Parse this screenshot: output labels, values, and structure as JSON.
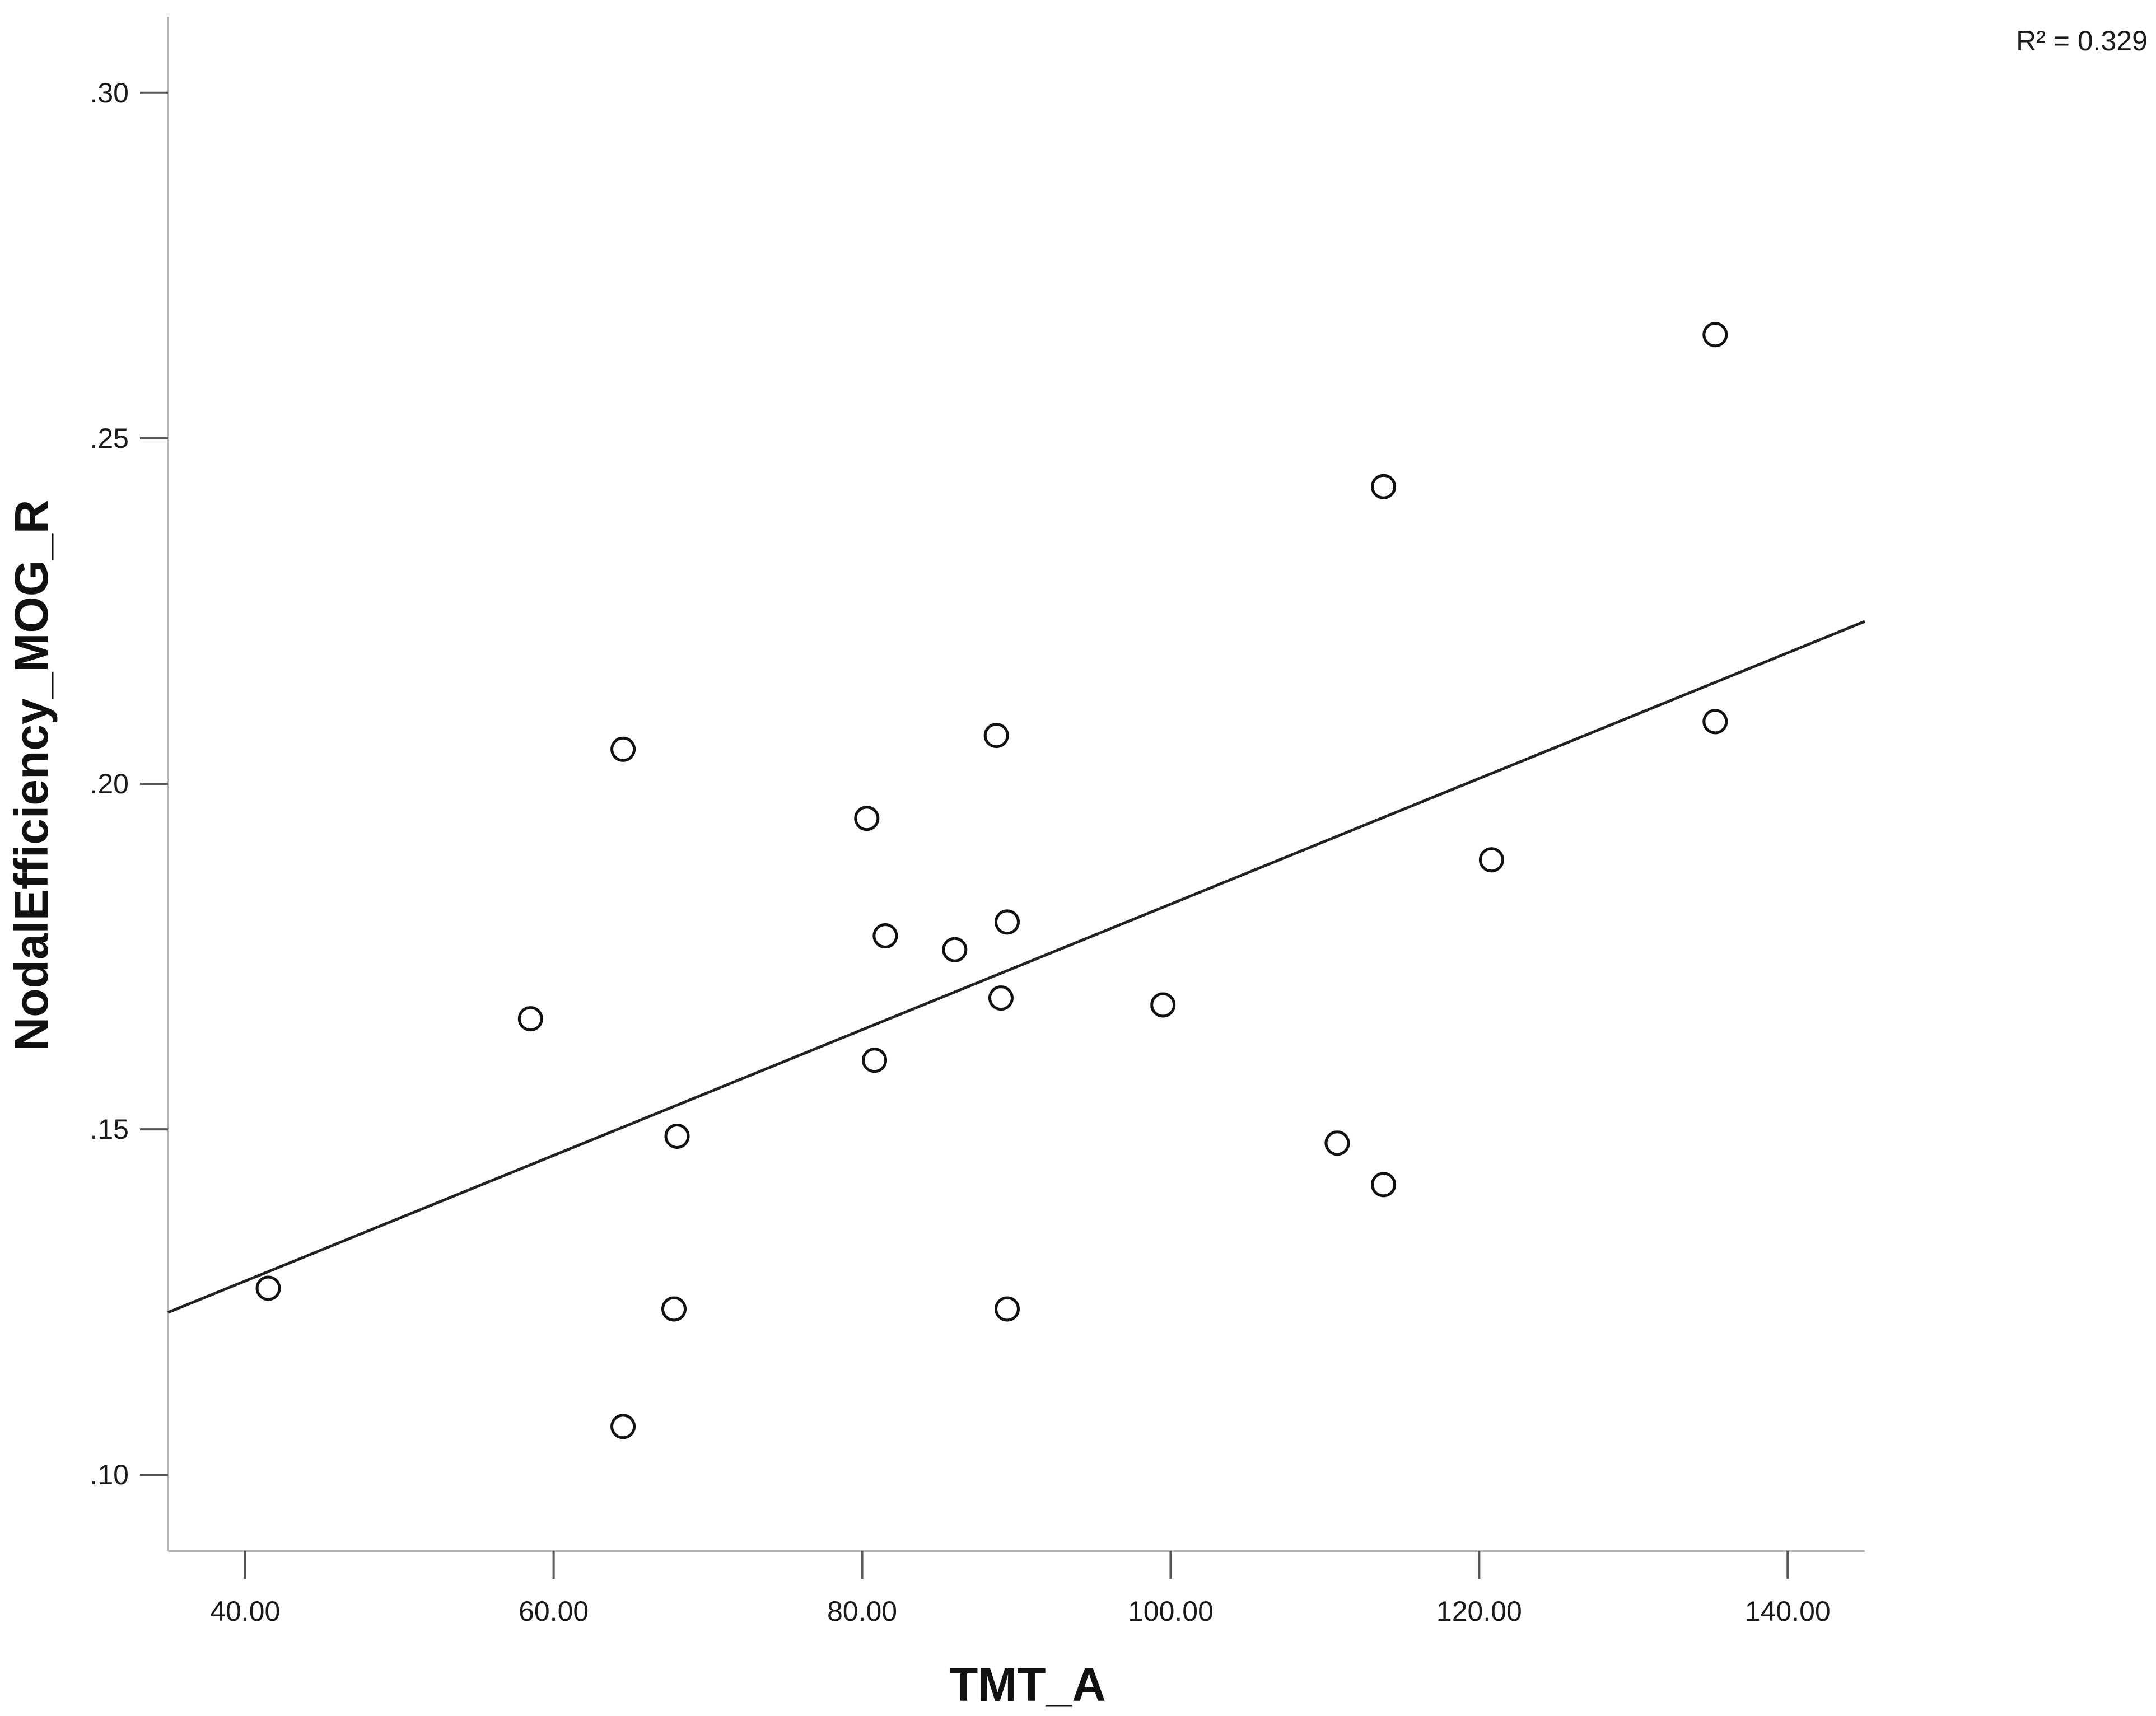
{
  "chart_data": {
    "type": "scatter",
    "title": "",
    "xlabel": "TMT_A",
    "ylabel": "NodalEfficiency_MOG_R",
    "xlim": [
      35.0,
      145.0
    ],
    "ylim": [
      0.089,
      0.311
    ],
    "x_ticks": [
      {
        "value": 40,
        "label": "40.00"
      },
      {
        "value": 60,
        "label": "60.00"
      },
      {
        "value": 80,
        "label": "80.00"
      },
      {
        "value": 100,
        "label": "100.00"
      },
      {
        "value": 120,
        "label": "120.00"
      },
      {
        "value": 140,
        "label": "140.00"
      }
    ],
    "y_ticks": [
      {
        "value": 0.1,
        "label": ".10"
      },
      {
        "value": 0.15,
        "label": ".15"
      },
      {
        "value": 0.2,
        "label": ".20"
      },
      {
        "value": 0.25,
        "label": ".25"
      },
      {
        "value": 0.3,
        "label": ".30"
      }
    ],
    "grid": false,
    "points": [
      {
        "x": 41.5,
        "y": 0.127
      },
      {
        "x": 58.5,
        "y": 0.166
      },
      {
        "x": 64.5,
        "y": 0.205
      },
      {
        "x": 64.5,
        "y": 0.107
      },
      {
        "x": 67.8,
        "y": 0.124
      },
      {
        "x": 68.0,
        "y": 0.149
      },
      {
        "x": 80.3,
        "y": 0.195
      },
      {
        "x": 80.8,
        "y": 0.16
      },
      {
        "x": 81.5,
        "y": 0.178
      },
      {
        "x": 86.0,
        "y": 0.176
      },
      {
        "x": 88.7,
        "y": 0.207
      },
      {
        "x": 89.0,
        "y": 0.169
      },
      {
        "x": 89.4,
        "y": 0.18
      },
      {
        "x": 89.4,
        "y": 0.124
      },
      {
        "x": 99.5,
        "y": 0.168
      },
      {
        "x": 110.8,
        "y": 0.148
      },
      {
        "x": 113.8,
        "y": 0.243
      },
      {
        "x": 113.8,
        "y": 0.142
      },
      {
        "x": 120.8,
        "y": 0.189
      },
      {
        "x": 135.3,
        "y": 0.265
      },
      {
        "x": 135.3,
        "y": 0.209
      }
    ],
    "fit_line": {
      "x": [
        35.0,
        145.0
      ],
      "y": [
        0.1235,
        0.2235
      ]
    },
    "r_squared_label": "R² = 0.329"
  }
}
